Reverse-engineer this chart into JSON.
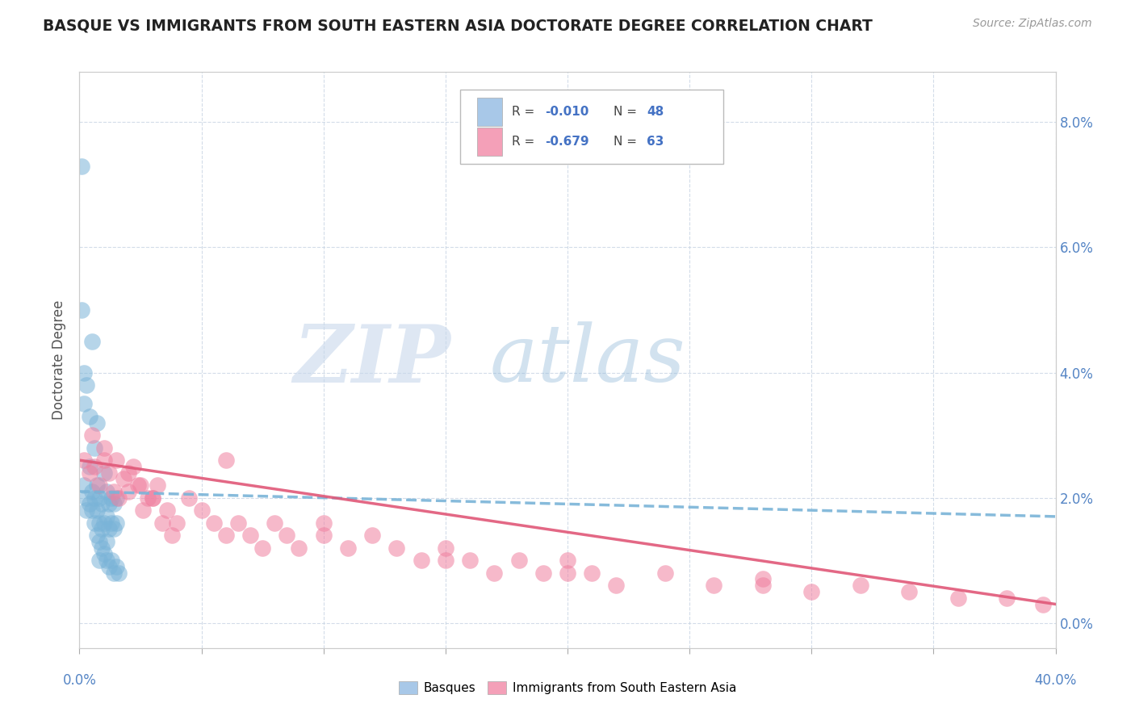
{
  "title": "BASQUE VS IMMIGRANTS FROM SOUTH EASTERN ASIA DOCTORATE DEGREE CORRELATION CHART",
  "source": "Source: ZipAtlas.com",
  "ylabel": "Doctorate Degree",
  "xlim": [
    0.0,
    0.4
  ],
  "ylim": [
    -0.004,
    0.088
  ],
  "ytick_vals": [
    0.0,
    0.02,
    0.04,
    0.06,
    0.08
  ],
  "legend1_color": "#a8c8e8",
  "legend2_color": "#f4a0b8",
  "series1_color": "#7ab4d8",
  "series2_color": "#f080a0",
  "line1_color": "#7ab4d8",
  "line2_color": "#e05878",
  "background_color": "#ffffff",
  "grid_color": "#c8d4e4",
  "basques_x": [
    0.002,
    0.003,
    0.003,
    0.004,
    0.004,
    0.005,
    0.005,
    0.006,
    0.006,
    0.007,
    0.007,
    0.007,
    0.008,
    0.008,
    0.008,
    0.009,
    0.009,
    0.01,
    0.01,
    0.011,
    0.011,
    0.011,
    0.012,
    0.012,
    0.013,
    0.013,
    0.014,
    0.014,
    0.015,
    0.015,
    0.001,
    0.001,
    0.002,
    0.002,
    0.003,
    0.004,
    0.005,
    0.006,
    0.007,
    0.008,
    0.009,
    0.01,
    0.011,
    0.012,
    0.013,
    0.014,
    0.015,
    0.016
  ],
  "basques_y": [
    0.022,
    0.02,
    0.018,
    0.025,
    0.019,
    0.021,
    0.018,
    0.02,
    0.016,
    0.022,
    0.018,
    0.014,
    0.02,
    0.016,
    0.013,
    0.019,
    0.015,
    0.024,
    0.016,
    0.021,
    0.017,
    0.013,
    0.019,
    0.015,
    0.02,
    0.016,
    0.019,
    0.015,
    0.02,
    0.016,
    0.073,
    0.05,
    0.04,
    0.035,
    0.038,
    0.033,
    0.045,
    0.028,
    0.032,
    0.01,
    0.012,
    0.011,
    0.01,
    0.009,
    0.01,
    0.008,
    0.009,
    0.008
  ],
  "immigrants_x": [
    0.002,
    0.004,
    0.006,
    0.008,
    0.01,
    0.012,
    0.014,
    0.016,
    0.018,
    0.02,
    0.022,
    0.024,
    0.026,
    0.028,
    0.03,
    0.032,
    0.034,
    0.036,
    0.038,
    0.04,
    0.045,
    0.05,
    0.055,
    0.06,
    0.065,
    0.07,
    0.075,
    0.08,
    0.085,
    0.09,
    0.1,
    0.11,
    0.12,
    0.13,
    0.14,
    0.15,
    0.16,
    0.17,
    0.18,
    0.19,
    0.2,
    0.21,
    0.22,
    0.24,
    0.26,
    0.28,
    0.3,
    0.32,
    0.34,
    0.36,
    0.38,
    0.395,
    0.005,
    0.01,
    0.015,
    0.02,
    0.025,
    0.03,
    0.06,
    0.1,
    0.15,
    0.2,
    0.28
  ],
  "immigrants_y": [
    0.026,
    0.024,
    0.025,
    0.022,
    0.026,
    0.024,
    0.021,
    0.02,
    0.023,
    0.021,
    0.025,
    0.022,
    0.018,
    0.02,
    0.02,
    0.022,
    0.016,
    0.018,
    0.014,
    0.016,
    0.02,
    0.018,
    0.016,
    0.014,
    0.016,
    0.014,
    0.012,
    0.016,
    0.014,
    0.012,
    0.014,
    0.012,
    0.014,
    0.012,
    0.01,
    0.012,
    0.01,
    0.008,
    0.01,
    0.008,
    0.01,
    0.008,
    0.006,
    0.008,
    0.006,
    0.007,
    0.005,
    0.006,
    0.005,
    0.004,
    0.004,
    0.003,
    0.03,
    0.028,
    0.026,
    0.024,
    0.022,
    0.02,
    0.026,
    0.016,
    0.01,
    0.008,
    0.006
  ]
}
